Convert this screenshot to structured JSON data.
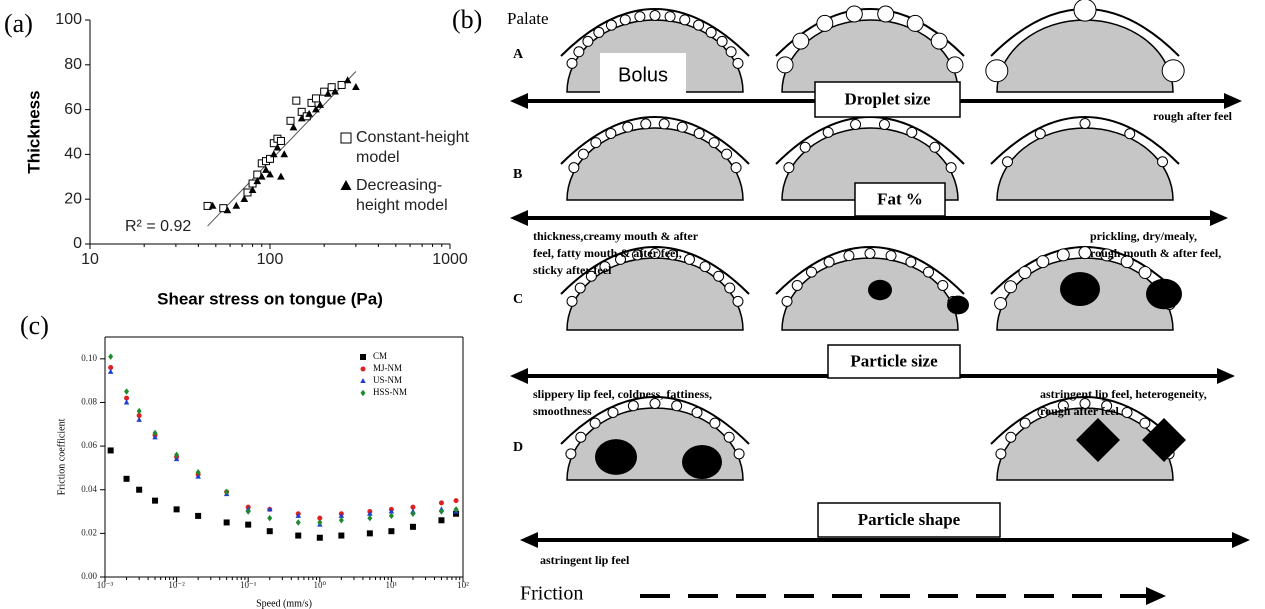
{
  "panel_labels": [
    "(a)",
    "(b)",
    "(c)"
  ],
  "chart_data": [
    {
      "type": "scatter",
      "xlabel": "Shear stress on tongue (Pa)",
      "ylabel": "Thickness",
      "xlog": true,
      "xlim": [
        10,
        1000
      ],
      "xticks": [
        10,
        100,
        1000
      ],
      "ylim": [
        0,
        100
      ],
      "yticks": [
        0,
        20,
        40,
        60,
        80,
        100
      ],
      "legend": "right",
      "annotation": "R² = 0.92",
      "fit_line": {
        "x": [
          45,
          300
        ],
        "y": [
          8,
          77
        ],
        "color": "#555555"
      },
      "series": [
        {
          "name": "Constant-height model",
          "marker": "square-open",
          "color": "#000000",
          "x": [
            45,
            55,
            75,
            80,
            85,
            90,
            95,
            100,
            105,
            110,
            115,
            130,
            140,
            150,
            160,
            170,
            180,
            200,
            220,
            250
          ],
          "values": [
            17,
            16,
            23,
            27,
            31,
            36,
            37,
            38,
            45,
            47,
            46,
            55,
            64,
            59,
            57,
            63,
            65,
            68,
            70,
            71
          ]
        },
        {
          "name": "Decreasing-height model",
          "marker": "triangle",
          "color": "#000000",
          "x": [
            48,
            58,
            65,
            72,
            80,
            85,
            90,
            95,
            100,
            105,
            110,
            115,
            120,
            135,
            150,
            165,
            180,
            190,
            210,
            230,
            270,
            300
          ],
          "values": [
            17,
            15,
            17,
            20,
            24,
            28,
            30,
            33,
            31,
            40,
            43,
            30,
            40,
            52,
            56,
            58,
            60,
            62,
            67,
            68,
            73,
            70
          ]
        }
      ]
    },
    {
      "type": "scatter",
      "xlabel": "Speed (mm/s)",
      "ylabel": "Friction coefficient",
      "xlog": true,
      "xlim": [
        0.001,
        100
      ],
      "xticks": [
        {
          "value": 0.001,
          "label": "10⁻³"
        },
        {
          "value": 0.01,
          "label": "10⁻²"
        },
        {
          "value": 0.1,
          "label": "10⁻¹"
        },
        {
          "value": 1,
          "label": "10⁰"
        },
        {
          "value": 10,
          "label": "10¹"
        },
        {
          "value": 100,
          "label": "10²"
        }
      ],
      "ylim": [
        0,
        0.11
      ],
      "yticks": [
        {
          "value": 0,
          "label": "0.00"
        },
        {
          "value": 0.02,
          "label": "0.02"
        },
        {
          "value": 0.04,
          "label": "0.04"
        },
        {
          "value": 0.06,
          "label": "0.06"
        },
        {
          "value": 0.08,
          "label": "0.08"
        },
        {
          "value": 0.1,
          "label": "0.10"
        }
      ],
      "legend": "upper right",
      "x": [
        0.0012,
        0.002,
        0.003,
        0.005,
        0.01,
        0.02,
        0.05,
        0.1,
        0.2,
        0.5,
        1,
        2,
        5,
        10,
        20,
        50,
        80
      ],
      "series": [
        {
          "name": "CM",
          "marker": "square",
          "color": "#000000",
          "values": [
            0.058,
            0.045,
            0.04,
            0.035,
            0.031,
            0.028,
            0.025,
            0.024,
            0.021,
            0.019,
            0.018,
            0.019,
            0.02,
            0.021,
            0.023,
            0.026,
            0.029
          ]
        },
        {
          "name": "MJ-NM",
          "marker": "circle",
          "color": "#e02020",
          "values": [
            0.096,
            0.082,
            0.074,
            0.065,
            0.055,
            0.047,
            0.039,
            0.032,
            0.031,
            0.029,
            0.027,
            0.029,
            0.03,
            0.031,
            0.032,
            0.034,
            0.035
          ]
        },
        {
          "name": "US-NM",
          "marker": "triangle",
          "color": "#1f3fd0",
          "values": [
            0.094,
            0.08,
            0.072,
            0.064,
            0.054,
            0.046,
            0.038,
            0.031,
            0.031,
            0.028,
            0.024,
            0.028,
            0.029,
            0.03,
            0.03,
            0.031,
            0.03
          ]
        },
        {
          "name": "HSS-NM",
          "marker": "diamond",
          "color": "#1e8a2e",
          "values": [
            0.101,
            0.085,
            0.076,
            0.066,
            0.056,
            0.048,
            0.039,
            0.03,
            0.027,
            0.025,
            0.025,
            0.026,
            0.027,
            0.028,
            0.029,
            0.03,
            0.031
          ]
        }
      ]
    }
  ],
  "diagram": {
    "palate": "Palate",
    "friction": "Friction",
    "rows": [
      {
        "letter": "A",
        "bolus": "Bolus",
        "box": "Droplet size",
        "right": [
          "rough after feel"
        ]
      },
      {
        "letter": "B",
        "box": "Fat %",
        "left": [
          "thickness,creamy mouth & after",
          "feel, fatty mouth & after feel,",
          "sticky after feel"
        ],
        "right": [
          "prickling, dry/mealy,",
          "rough mouth & after feel,"
        ]
      },
      {
        "letter": "C",
        "box": "Particle size",
        "left": [
          "slippery lip feel, coldness, fattiness,",
          "smoothness"
        ],
        "right": [
          "astringent lip feel, heterogeneity,",
          "rough after feel"
        ]
      },
      {
        "letter": "D",
        "box": "Particle shape",
        "left": [
          "astringent lip feel"
        ]
      }
    ]
  }
}
